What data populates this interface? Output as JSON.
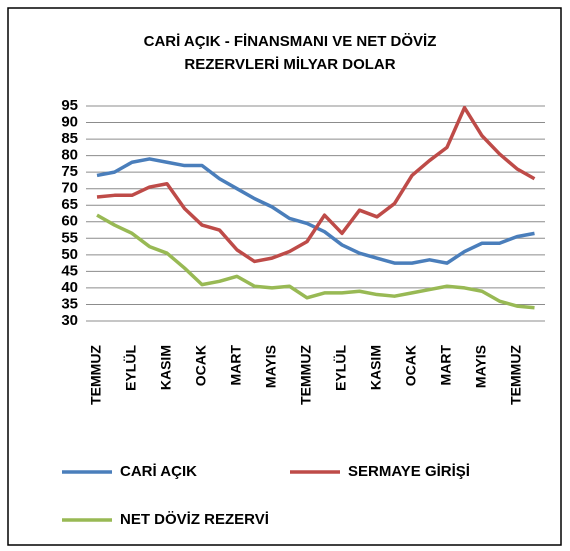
{
  "chart_data": {
    "type": "line",
    "title": [
      "CARİ AÇIK - FİNANSMANI VE NET DÖVİZ",
      "REZERVLERİ  MİLYAR DOLAR"
    ],
    "categories": [
      "TEMMUZ",
      null,
      "EYLÜL",
      null,
      "KASIM",
      null,
      "OCAK",
      null,
      "MART",
      null,
      "MAYIS",
      null,
      "TEMMUZ",
      null,
      "EYLÜL",
      null,
      "KASIM",
      null,
      "OCAK",
      null,
      "MART",
      null,
      "MAYIS",
      null,
      "TEMMUZ",
      null
    ],
    "series": [
      {
        "name": "CARİ AÇIK",
        "color": "#4a7ebb",
        "values": [
          74,
          75,
          78,
          79,
          78,
          77,
          77,
          73,
          70,
          67,
          64.5,
          61,
          59.5,
          57,
          53,
          50.5,
          49,
          47.5,
          47.5,
          48.5,
          47.5,
          51,
          53.5,
          53.5,
          55.5,
          56.5
        ]
      },
      {
        "name": "SERMAYE GİRİŞİ",
        "color": "#be4b48",
        "values": [
          67.5,
          68,
          68,
          70.5,
          71.5,
          64,
          59,
          57.5,
          51.5,
          48,
          49,
          51,
          54,
          62,
          56.5,
          63.5,
          61.5,
          65.5,
          74,
          78.5,
          82.5,
          94.5,
          86,
          80.5,
          76,
          73
        ]
      },
      {
        "name": "NET DÖVİZ REZERVİ",
        "color": "#98b954",
        "values": [
          62,
          59,
          56.5,
          52.5,
          50.5,
          46,
          41,
          42,
          43.5,
          40.5,
          40,
          40.5,
          37,
          38.5,
          38.5,
          39,
          38,
          37.5,
          38.5,
          39.5,
          40.5,
          40,
          39,
          36,
          34.5,
          34
        ]
      }
    ],
    "ylim": [
      30,
      95
    ],
    "yticks": [
      30,
      35,
      40,
      45,
      50,
      55,
      60,
      65,
      70,
      75,
      80,
      85,
      90,
      95
    ],
    "grid": true,
    "legend": "bottom"
  }
}
